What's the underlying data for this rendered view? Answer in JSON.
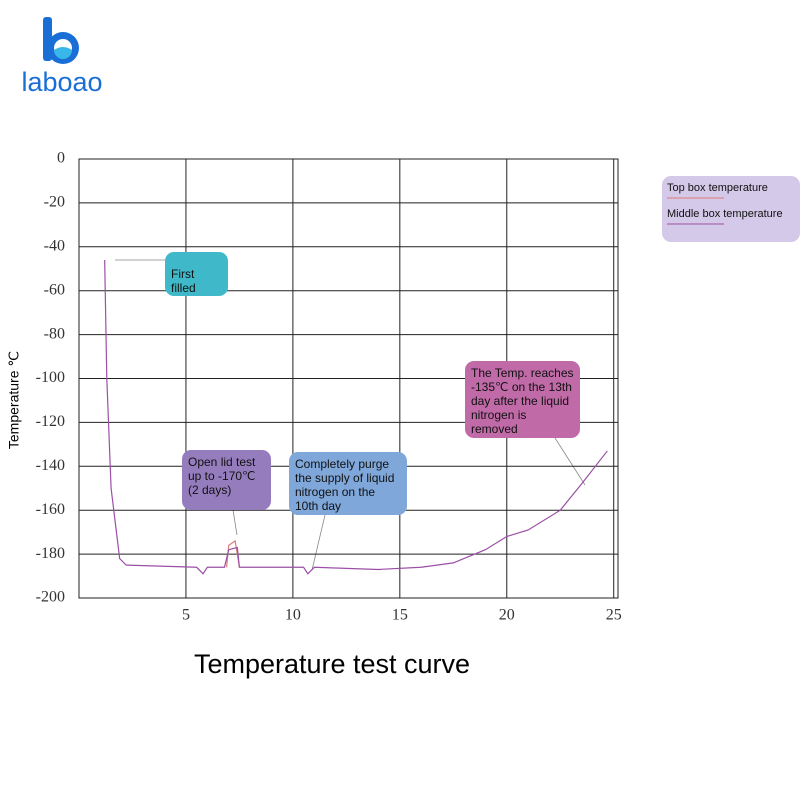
{
  "logo": "laboao",
  "chart_data": {
    "type": "line",
    "title": "Temperature test curve",
    "y_label": "Temperature ℃",
    "xlim": [
      0,
      25.2
    ],
    "xticks": [
      5,
      10,
      15,
      20,
      25
    ],
    "ylim": [
      -200,
      0
    ],
    "yticks": [
      0,
      -20,
      -40,
      -60,
      -80,
      -100,
      -120,
      -140,
      -160,
      -180,
      -200
    ],
    "grid": true,
    "legend": "top-right",
    "series": [
      {
        "name": "Top box temperature",
        "color": "#e07a7a",
        "x": [
          6.9,
          7.0,
          7.3,
          7.5
        ],
        "values": [
          -186,
          -176,
          -174,
          -186
        ]
      },
      {
        "name": "Middle box temperature",
        "color": "#9b4fa6",
        "x": [
          1.2,
          1.3,
          1.5,
          1.9,
          2.2,
          5.5,
          5.8,
          6.0,
          6.8,
          7.0,
          7.4,
          7.5,
          10.5,
          10.7,
          11.0,
          14.0,
          16.0,
          17.5,
          19.0,
          20.0,
          21.0,
          22.5,
          23.5,
          24.7
        ],
        "values": [
          -46,
          -100,
          -150,
          -182,
          -185,
          -186,
          -189,
          -186,
          -186,
          -178,
          -177,
          -186,
          -186,
          -189,
          -186,
          -187,
          -186,
          -184,
          -178,
          -172,
          -169,
          -160,
          -148,
          -133
        ]
      }
    ],
    "annotations": [
      "First filled",
      "Open lid test up to -170℃ (2 days)",
      "Completely purge the supply of liquid nitrogen on the 10th day",
      "The Temp. reaches -135℃ on the 13th day after the liquid nitrogen is removed"
    ]
  }
}
